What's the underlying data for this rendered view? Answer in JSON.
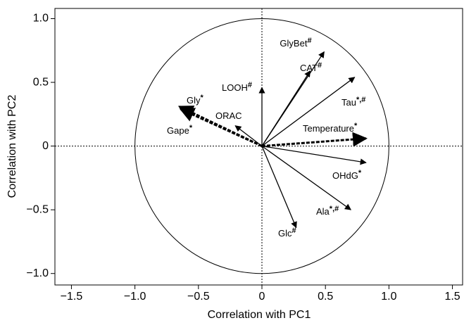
{
  "chart_data": {
    "type": "vector",
    "xlabel": "Correlation with PC1",
    "ylabel": "Correlation with PC2",
    "xlim": [
      -1.63,
      1.58
    ],
    "ylim": [
      -1.09,
      1.08
    ],
    "xticks": [
      {
        "value": -1.5,
        "label": "−1.5"
      },
      {
        "value": -1.0,
        "label": "−1.0"
      },
      {
        "value": -0.5,
        "label": "−0.5"
      },
      0,
      {
        "value": 0.5,
        "label": "0.5"
      },
      {
        "value": 1.0,
        "label": "1.0"
      },
      {
        "value": 1.5,
        "label": "1.5"
      }
    ],
    "yticks": [
      {
        "value": -1.0,
        "label": "−1.0"
      },
      {
        "value": -0.5,
        "label": "−0.5"
      },
      0,
      {
        "value": 0.5,
        "label": "0.5"
      },
      {
        "value": 1.0,
        "label": "1.0"
      }
    ],
    "color": "#000000",
    "vectors": [
      {
        "name": "GlyBet",
        "mark": "#",
        "x": 0.49,
        "y": 0.74,
        "style": "solid"
      },
      {
        "name": "CAT",
        "mark": "#",
        "x": 0.38,
        "y": 0.59,
        "style": "solid"
      },
      {
        "name": "Tau",
        "mark": "*,#",
        "x": 0.73,
        "y": 0.54,
        "style": "solid"
      },
      {
        "name": "Temperature",
        "mark": "*",
        "x": 0.82,
        "y": 0.06,
        "style": "dashed"
      },
      {
        "name": "OHdG",
        "mark": "*",
        "x": 0.82,
        "y": -0.13,
        "style": "solid"
      },
      {
        "name": "Ala",
        "mark": "*,#",
        "x": 0.7,
        "y": -0.5,
        "style": "solid"
      },
      {
        "name": "Glc",
        "mark": "#",
        "x": 0.27,
        "y": -0.64,
        "style": "solid"
      },
      {
        "name": "LOOH",
        "mark": "#",
        "x": 0.0,
        "y": 0.46,
        "style": "solid"
      },
      {
        "name": "ORAC",
        "x": -0.21,
        "y": 0.16,
        "style": "solid"
      },
      {
        "name": "Gly",
        "mark": "*",
        "x": -0.65,
        "y": 0.31,
        "style": "dashed"
      },
      {
        "name": "Gape",
        "mark": "*",
        "x": -0.64,
        "y": 0.29,
        "style": "dashed"
      }
    ]
  }
}
